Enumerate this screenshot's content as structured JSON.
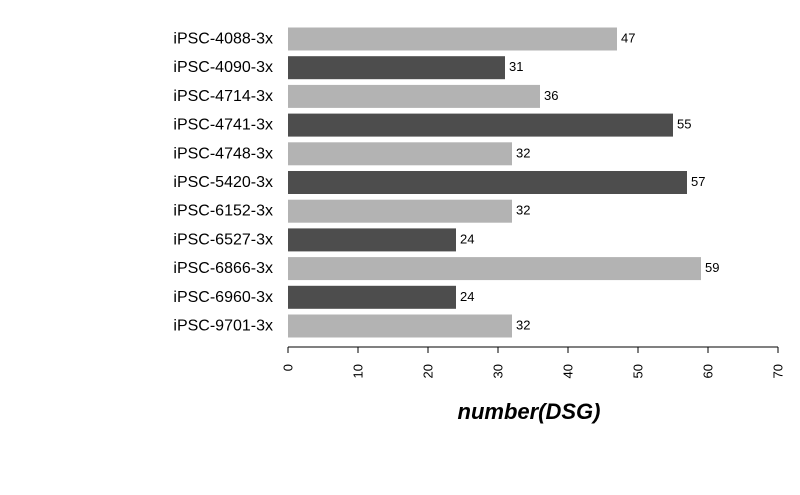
{
  "chart_data": {
    "type": "bar",
    "orientation": "horizontal",
    "categories": [
      "iPSC-4088-3x",
      "iPSC-4090-3x",
      "iPSC-4714-3x",
      "iPSC-4741-3x",
      "iPSC-4748-3x",
      "iPSC-5420-3x",
      "iPSC-6152-3x",
      "iPSC-6527-3x",
      "iPSC-6866-3x",
      "iPSC-6960-3x",
      "iPSC-9701-3x"
    ],
    "values": [
      47,
      31,
      36,
      55,
      32,
      57,
      32,
      24,
      59,
      24,
      32
    ],
    "bar_colors": [
      "#b3b3b3",
      "#4d4d4d"
    ],
    "xlabel": "number(DSG)",
    "ylabel": "",
    "xlim": [
      0,
      70
    ],
    "xticks": [
      0,
      10,
      20,
      30,
      40,
      50,
      60,
      70
    ],
    "tick_label_rotation": "vertical",
    "grid": false,
    "legend": false
  }
}
